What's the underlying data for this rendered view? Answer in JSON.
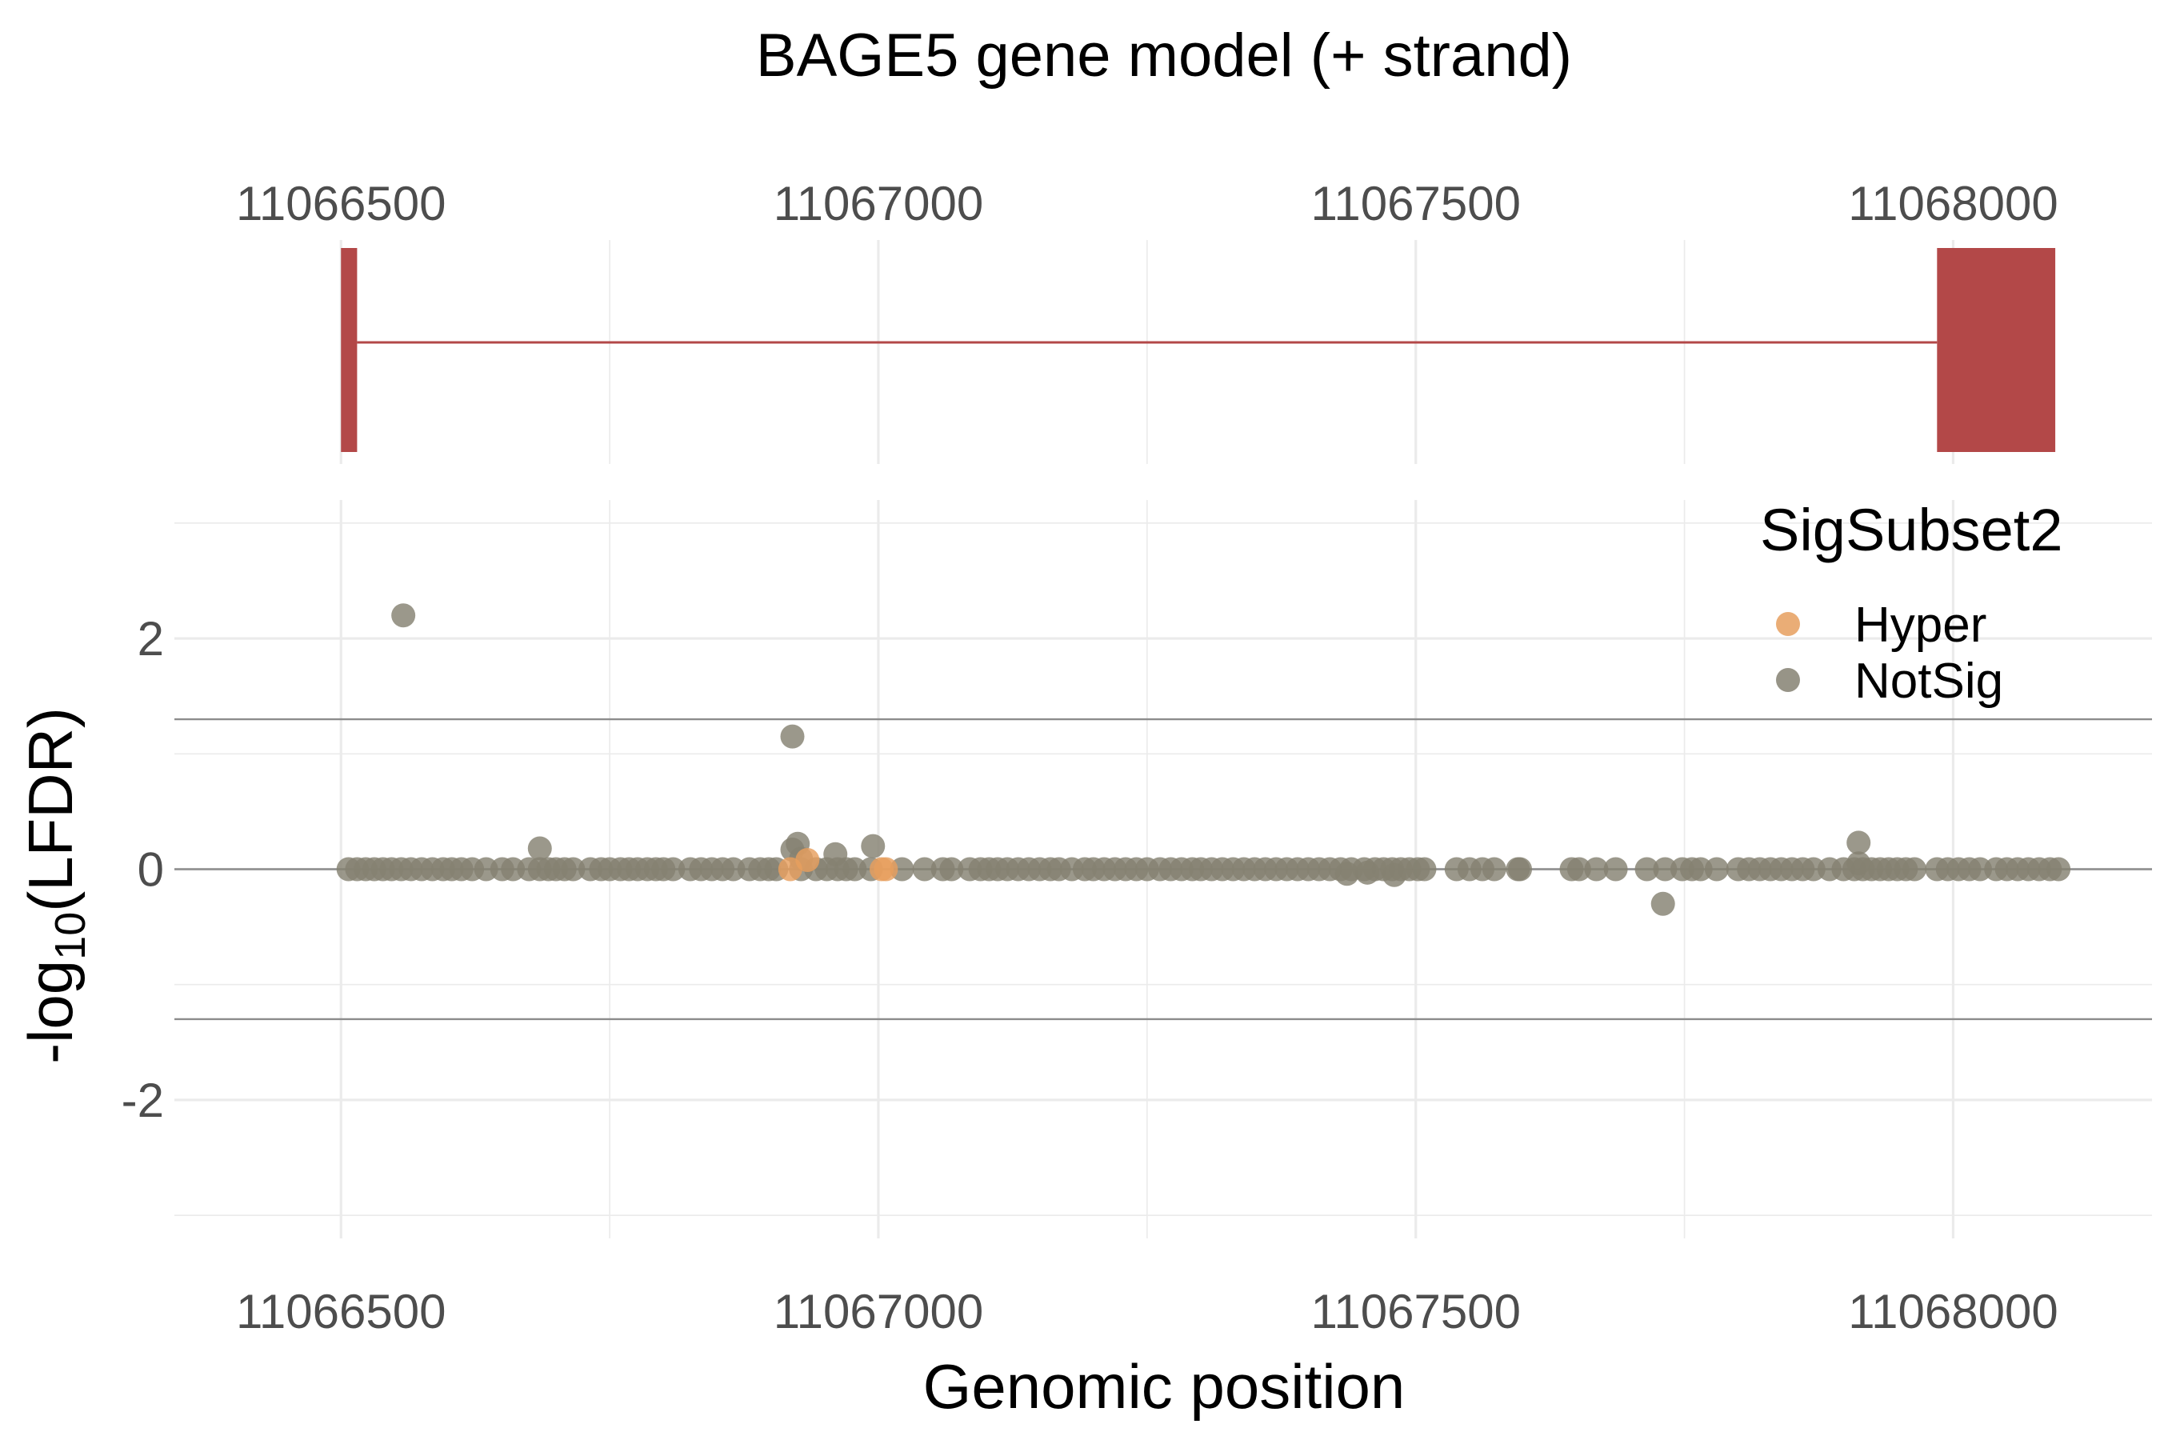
{
  "chart_data": {
    "type": "scatter",
    "title": "BAGE5 gene model (+ strand)",
    "xlabel": "Genomic position",
    "ylabel": "-log10(LFDR)",
    "ylabel_parts": {
      "prefix": "-log",
      "subscript": "10",
      "suffix": "(LFDR)"
    },
    "xlim": [
      11066345,
      11068185
    ],
    "ylim": [
      -3.2,
      3.2
    ],
    "x_ticks": [
      11066500,
      11067000,
      11067500,
      11068000
    ],
    "x_tick_labels": [
      "11066500",
      "11067000",
      "11067500",
      "11068000"
    ],
    "y_ticks": [
      2,
      0,
      -2
    ],
    "y_tick_labels": [
      "2",
      "0",
      "-2"
    ],
    "reference_lines": [
      1.3,
      0,
      -1.3
    ],
    "grid": true,
    "gene_model": {
      "strand": "+",
      "color": "#b34848",
      "exons": [
        [
          11066500,
          11066515
        ],
        [
          11067985,
          11068095
        ]
      ],
      "intron": [
        11066515,
        11067985
      ]
    },
    "legend": {
      "title": "SigSubset2",
      "position": "top-right",
      "entries": [
        {
          "label": "Hyper",
          "color": "#e69f5e"
        },
        {
          "label": "NotSig",
          "color": "#858172"
        }
      ]
    },
    "series": [
      {
        "name": "Hyper",
        "color": "#e69f5e",
        "points": [
          [
            11066918,
            0.0
          ],
          [
            11066934,
            0.08
          ],
          [
            11067003,
            0.0
          ],
          [
            11067007,
            0.0
          ]
        ]
      },
      {
        "name": "NotSig",
        "color": "#858172",
        "points": [
          [
            11066507,
            0
          ],
          [
            11066515,
            0
          ],
          [
            11066523,
            0
          ],
          [
            11066531,
            0
          ],
          [
            11066539,
            0
          ],
          [
            11066547,
            0
          ],
          [
            11066556,
            0
          ],
          [
            11066565,
            0
          ],
          [
            11066575,
            0
          ],
          [
            11066585,
            0
          ],
          [
            11066595,
            0
          ],
          [
            11066603,
            0
          ],
          [
            11066612,
            0
          ],
          [
            11066622,
            0
          ],
          [
            11066635,
            0
          ],
          [
            11066650,
            0
          ],
          [
            11066660,
            0
          ],
          [
            11066675,
            0
          ],
          [
            11066685,
            0
          ],
          [
            11066693,
            0
          ],
          [
            11066700,
            0
          ],
          [
            11066708,
            0
          ],
          [
            11066716,
            0
          ],
          [
            11066732,
            0
          ],
          [
            11066742,
            0
          ],
          [
            11066750,
            0
          ],
          [
            11066760,
            0
          ],
          [
            11066768,
            0
          ],
          [
            11066776,
            0
          ],
          [
            11066785,
            0
          ],
          [
            11066793,
            0
          ],
          [
            11066800,
            0
          ],
          [
            11066809,
            0
          ],
          [
            11066825,
            0
          ],
          [
            11066835,
            0
          ],
          [
            11066845,
            0
          ],
          [
            11066855,
            0
          ],
          [
            11066865,
            0
          ],
          [
            11066880,
            0
          ],
          [
            11066890,
            0
          ],
          [
            11066898,
            0
          ],
          [
            11066905,
            0
          ],
          [
            11066928,
            0
          ],
          [
            11066942,
            0
          ],
          [
            11066952,
            0
          ],
          [
            11066962,
            0
          ],
          [
            11066970,
            0
          ],
          [
            11066978,
            0
          ],
          [
            11066993,
            0
          ],
          [
            11067022,
            0
          ],
          [
            11067043,
            0
          ],
          [
            11067060,
            0
          ],
          [
            11067068,
            0
          ],
          [
            11067085,
            0
          ],
          [
            11067095,
            0
          ],
          [
            11067103,
            0
          ],
          [
            11067111,
            0
          ],
          [
            11067120,
            0
          ],
          [
            11067130,
            0
          ],
          [
            11067140,
            0
          ],
          [
            11067150,
            0
          ],
          [
            11067160,
            0
          ],
          [
            11067168,
            0
          ],
          [
            11067180,
            0
          ],
          [
            11067192,
            0
          ],
          [
            11067200,
            0
          ],
          [
            11067210,
            0
          ],
          [
            11067220,
            0
          ],
          [
            11067230,
            0
          ],
          [
            11067240,
            0
          ],
          [
            11067250,
            0
          ],
          [
            11067262,
            0
          ],
          [
            11067272,
            0
          ],
          [
            11067282,
            0
          ],
          [
            11067292,
            0
          ],
          [
            11067300,
            0
          ],
          [
            11067310,
            0
          ],
          [
            11067320,
            0
          ],
          [
            11067330,
            0
          ],
          [
            11067340,
            0
          ],
          [
            11067350,
            0
          ],
          [
            11067360,
            0
          ],
          [
            11067370,
            0
          ],
          [
            11067380,
            0
          ],
          [
            11067390,
            0
          ],
          [
            11067400,
            0
          ],
          [
            11067410,
            0
          ],
          [
            11067420,
            0
          ],
          [
            11067430,
            0
          ],
          [
            11067440,
            0
          ],
          [
            11067452,
            0
          ],
          [
            11067462,
            0
          ],
          [
            11067470,
            0
          ],
          [
            11067478,
            0
          ],
          [
            11067486,
            0
          ],
          [
            11067494,
            0
          ],
          [
            11067502,
            0
          ],
          [
            11067508,
            0
          ],
          [
            11067538,
            0
          ],
          [
            11067550,
            0
          ],
          [
            11067562,
            0
          ],
          [
            11067573,
            0
          ],
          [
            11067595,
            0
          ],
          [
            11067597,
            0
          ],
          [
            11067645,
            0
          ],
          [
            11067652,
            0
          ],
          [
            11067668,
            0
          ],
          [
            11067686,
            0
          ],
          [
            11067715,
            0
          ],
          [
            11067732,
            0
          ],
          [
            11067748,
            0
          ],
          [
            11067757,
            0
          ],
          [
            11067765,
            0
          ],
          [
            11067780,
            0
          ],
          [
            11067800,
            0
          ],
          [
            11067810,
            0
          ],
          [
            11067820,
            0
          ],
          [
            11067830,
            0
          ],
          [
            11067840,
            0
          ],
          [
            11067850,
            0
          ],
          [
            11067860,
            0
          ],
          [
            11067870,
            0
          ],
          [
            11067885,
            0
          ],
          [
            11067898,
            0
          ],
          [
            11067908,
            0
          ],
          [
            11067916,
            0
          ],
          [
            11067924,
            0
          ],
          [
            11067932,
            0
          ],
          [
            11067940,
            0
          ],
          [
            11067948,
            0
          ],
          [
            11067956,
            0
          ],
          [
            11067964,
            0
          ],
          [
            11067985,
            0
          ],
          [
            11067995,
            0
          ],
          [
            11068005,
            0
          ],
          [
            11068015,
            0
          ],
          [
            11068025,
            0
          ],
          [
            11068040,
            0
          ],
          [
            11068050,
            0
          ],
          [
            11068060,
            0
          ],
          [
            11068070,
            0
          ],
          [
            11068080,
            0
          ],
          [
            11068090,
            0
          ],
          [
            11068098,
            0
          ],
          [
            11066558,
            2.2
          ],
          [
            11066685,
            0.18
          ],
          [
            11066920,
            1.15
          ],
          [
            11066920,
            0.17
          ],
          [
            11066925,
            0.22
          ],
          [
            11066928,
            0.09
          ],
          [
            11066960,
            0.13
          ],
          [
            11066995,
            0.2
          ],
          [
            11067436,
            -0.04
          ],
          [
            11067455,
            -0.03
          ],
          [
            11067480,
            -0.05
          ],
          [
            11067730,
            -0.3
          ],
          [
            11067912,
            0.23
          ],
          [
            11067912,
            0.05
          ]
        ]
      }
    ]
  }
}
